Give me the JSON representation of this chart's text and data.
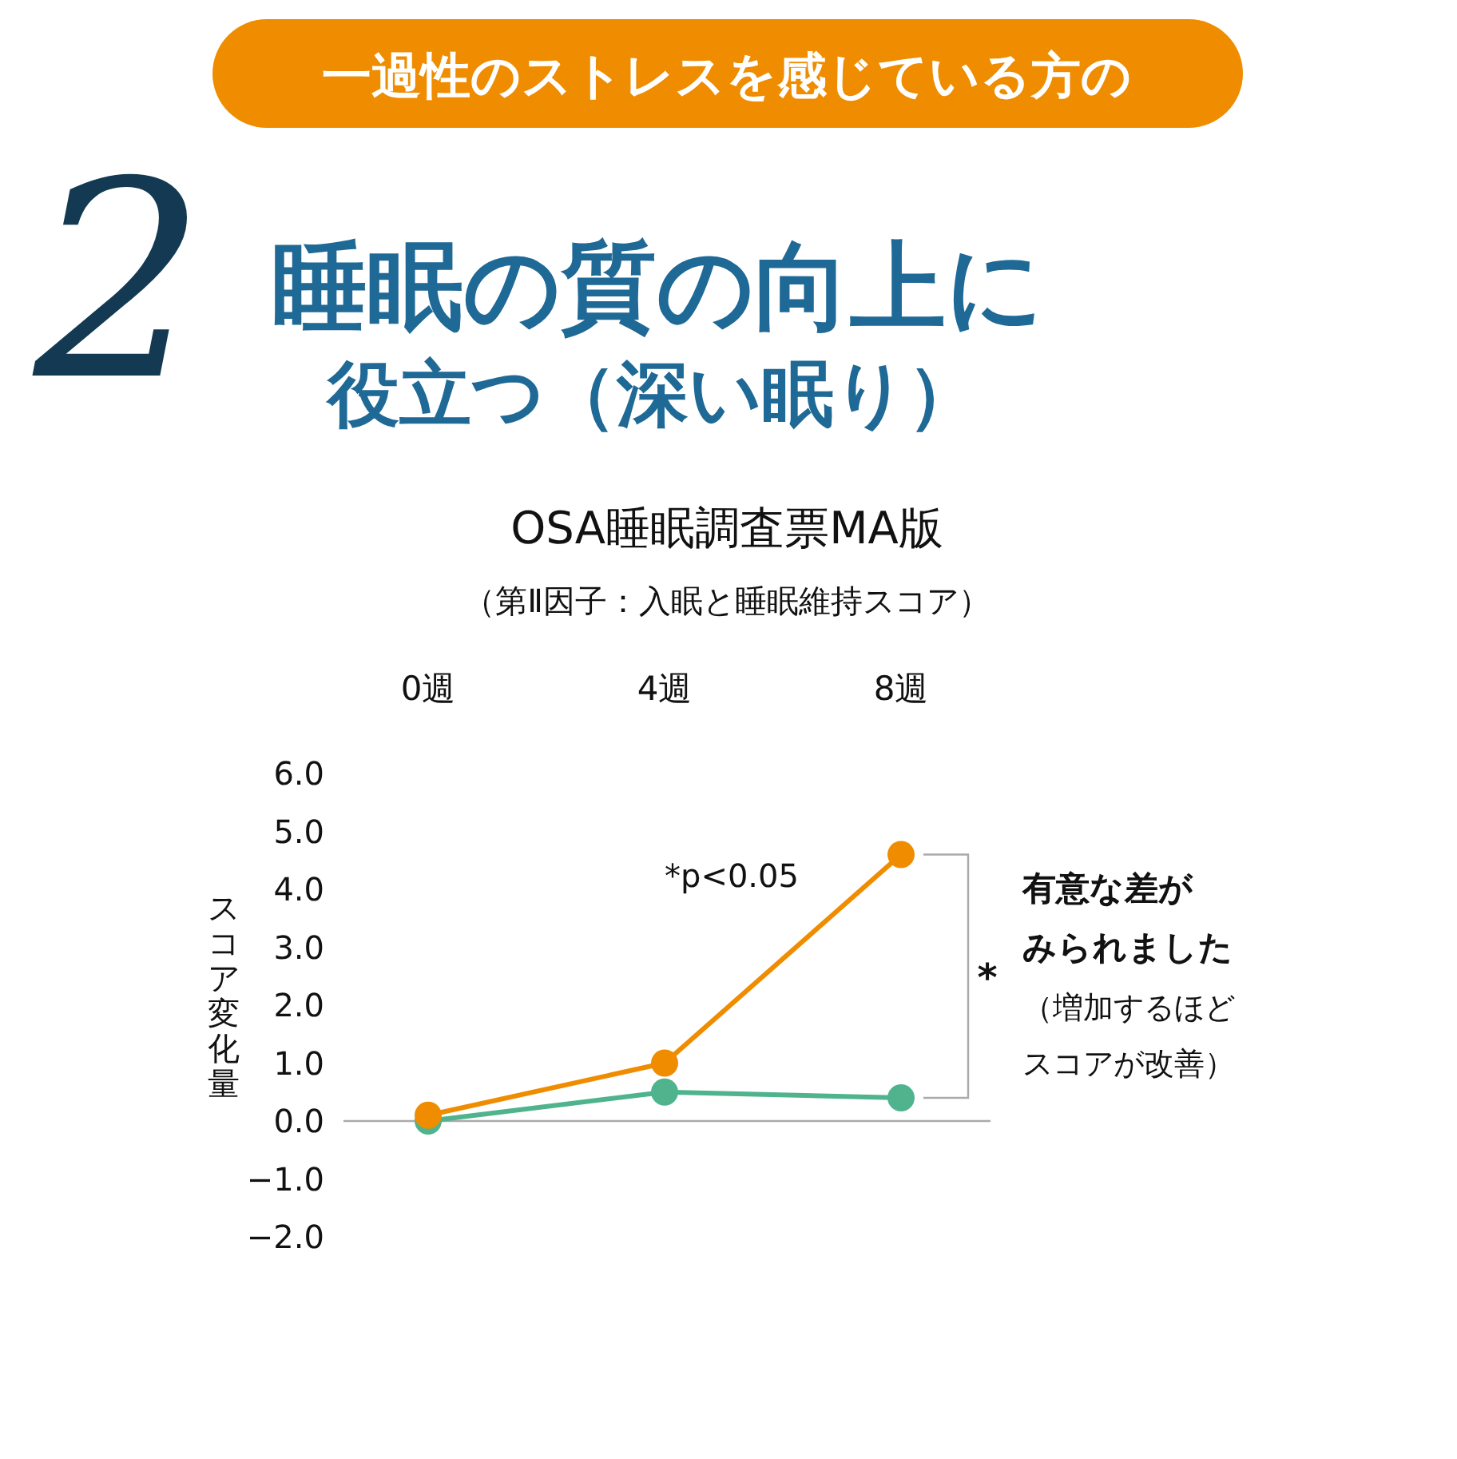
{
  "chart_data": {
    "type": "line",
    "title": "OSA睡眠調査票MA版",
    "subtitle": "（第Ⅱ因子：入眠と睡眠維持スコア）",
    "ylabel": "スコア変化量",
    "categories": [
      "0週",
      "4週",
      "8週"
    ],
    "series": [
      {
        "color": "#ef8c00",
        "values": [
          0.1,
          1.0,
          4.6
        ]
      },
      {
        "color": "#4fb38e",
        "values": [
          0.0,
          0.5,
          0.4
        ]
      }
    ],
    "ylim": [
      -2,
      6
    ],
    "yticks": [
      {
        "value": 6,
        "label": "6.0"
      },
      {
        "value": 5,
        "label": "5.0"
      },
      {
        "value": 4,
        "label": "4.0"
      },
      {
        "value": 3,
        "label": "3.0"
      },
      {
        "value": 2,
        "label": "2.0"
      },
      {
        "value": 1,
        "label": "1.0"
      },
      {
        "value": 0,
        "label": "0.0"
      },
      {
        "value": -1,
        "label": "−1.0"
      },
      {
        "value": -2,
        "label": "−2.0"
      }
    ],
    "marker": "circle",
    "annotations": [
      "一過性のストレスを感じている方の",
      "2",
      "睡眠の質の向上に",
      "役立つ（深い眠り）",
      "*p<0.05",
      "*",
      "有意な差が",
      "みられました",
      "（増加するほど",
      "スコアが改善）"
    ]
  }
}
